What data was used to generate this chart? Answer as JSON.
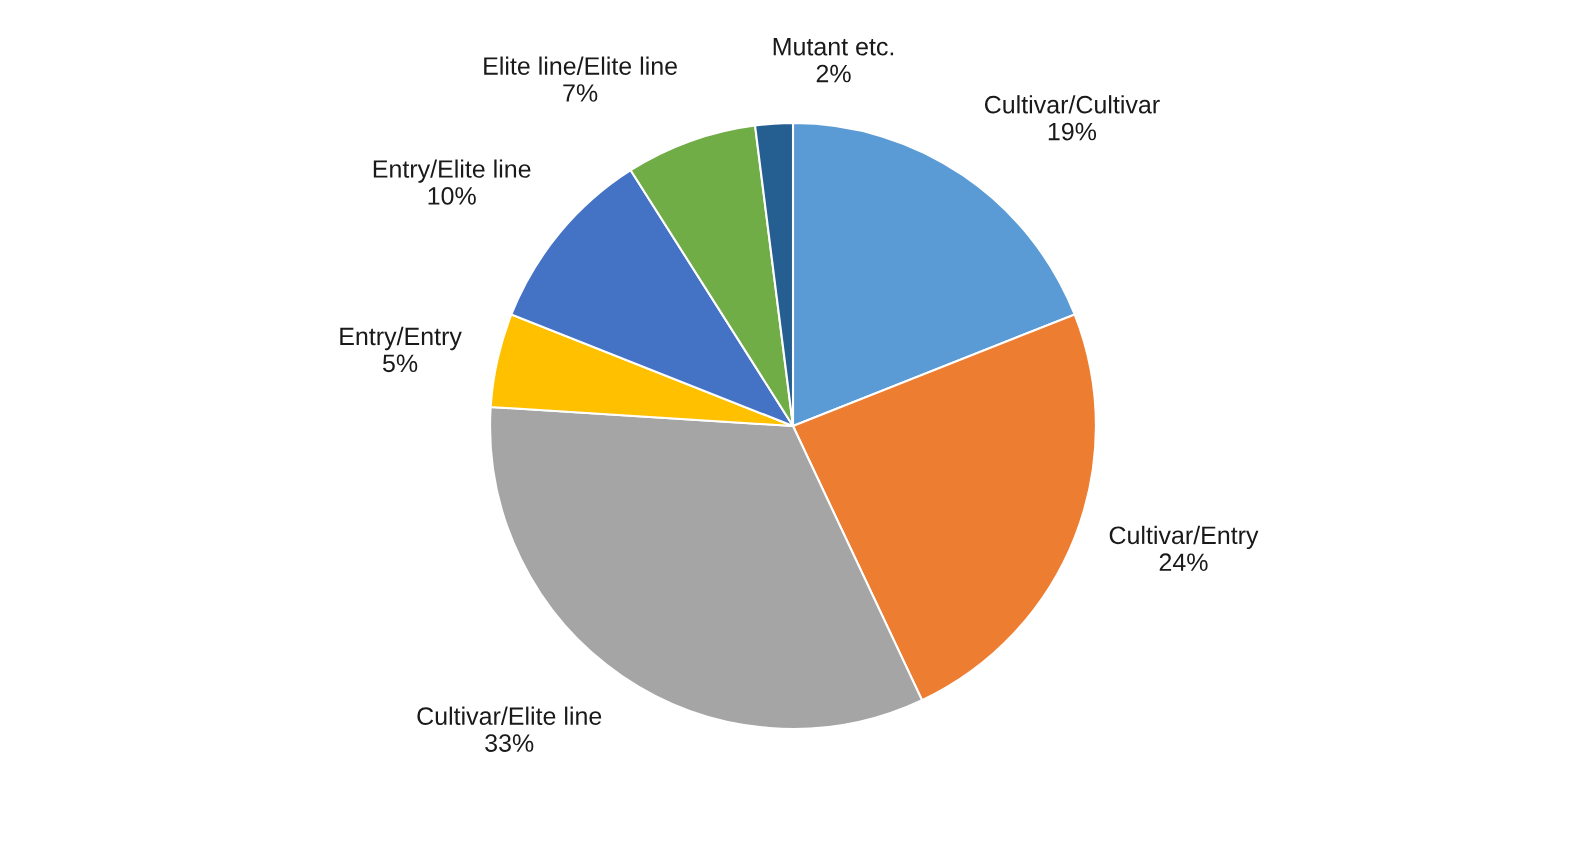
{
  "chart_data": {
    "type": "pie",
    "categories": [
      "Cultivar/Cultivar",
      "Cultivar/Entry",
      "Cultivar/Elite line",
      "Entry/Entry",
      "Entry/Elite line",
      "Elite line/Elite line",
      "Mutant etc."
    ],
    "values": [
      19,
      24,
      33,
      5,
      10,
      7,
      2
    ],
    "value_labels": [
      "19%",
      "24%",
      "33%",
      "5%",
      "10%",
      "7%",
      "2%"
    ],
    "colors": [
      "#5b9bd5",
      "#ed7d31",
      "#a5a5a5",
      "#ffc000",
      "#4472c4",
      "#70ad47",
      "#255e91"
    ],
    "legend": false
  }
}
